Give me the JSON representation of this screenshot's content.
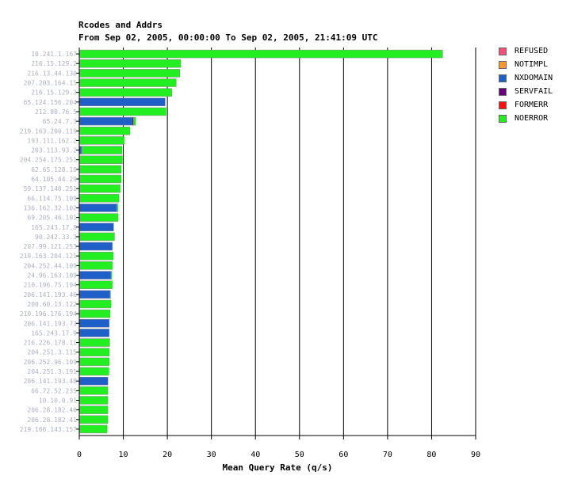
{
  "title": "Rcodes and Addrs",
  "subtitle": "From Sep 02, 2005, 00:00:00 To Sep 02, 2005, 21:41:09 UTC",
  "colors": {
    "REFUSED": "#f0507a",
    "NOTIMPL": "#ff9933",
    "NXDOMAIN": "#1f5fc8",
    "SERVFAIL": "#660077",
    "FORMERR": "#ff1111",
    "NOERROR": "#22ee22"
  },
  "chart_data": {
    "type": "bar",
    "orientation": "horizontal",
    "stacked": true,
    "xlabel": "Mean Query Rate (q/s)",
    "xlim": [
      0,
      90
    ],
    "xticks": [
      0,
      10,
      20,
      30,
      40,
      50,
      60,
      70,
      80,
      90
    ],
    "grid": "vertical",
    "legend_position": "top-right",
    "legend": [
      "REFUSED",
      "NOTIMPL",
      "NXDOMAIN",
      "SERVFAIL",
      "FORMERR",
      "NOERROR"
    ],
    "categories": [
      "10.241.1.167",
      "216.15.129.2",
      "216.13.44.130",
      "207.203.164.15",
      "216.15.129.3",
      "65.124.156.204",
      "212.80.76.5",
      "65.24.7.3",
      "219.163.200.119",
      "193.111.162.2",
      "203.113.93.2",
      "204.254.175.251",
      "62.65.128.10",
      "64.105.44.29",
      "59.137.140.251",
      "66.114.75.109",
      "136.162.32.102",
      "69.205.46.101",
      "165.243.17.8",
      "90.242.33.3",
      "207.99.121.253",
      "219.163.204.121",
      "204.252.44.109",
      "24.96.163.109",
      "210.196.75.194",
      "206.141.193.46",
      "200.60.13.122",
      "210.196.176.194",
      "206.141.193.73",
      "165.243.17.9",
      "216.226.178.11",
      "204.251.3.115",
      "206.252.96.109",
      "204.251.3.191",
      "206.141.193.48",
      "66.72.52.235",
      "10.10.0.91",
      "206.28.182.40",
      "206.28.182.41",
      "219.166.143.157"
    ],
    "series": [
      {
        "name": "NXDOMAIN",
        "values": [
          0,
          0,
          0,
          0,
          0,
          19.5,
          0,
          12.0,
          0,
          0,
          0.5,
          0,
          0,
          0,
          0,
          0,
          8.5,
          0,
          7.8,
          0,
          7.5,
          0,
          0,
          7.2,
          0,
          7.0,
          0,
          0,
          6.8,
          6.8,
          0,
          0,
          0,
          0,
          6.5,
          0,
          0,
          0,
          0,
          0
        ]
      },
      {
        "name": "SERVFAIL",
        "values": [
          0,
          0,
          0,
          0,
          0,
          0,
          0,
          0.3,
          0,
          0,
          0,
          0,
          0,
          0,
          0,
          0,
          0,
          0,
          0,
          0,
          0,
          0,
          0,
          0,
          0,
          0,
          0,
          0,
          0,
          0,
          0,
          0,
          0,
          0,
          0,
          0,
          0,
          0,
          0,
          0
        ]
      },
      {
        "name": "NOERROR",
        "values": [
          82.5,
          23.0,
          22.8,
          22.0,
          21.0,
          0,
          19.7,
          0.5,
          11.5,
          10.2,
          9.2,
          9.8,
          9.5,
          9.5,
          9.3,
          9.0,
          0.3,
          8.8,
          0,
          8.0,
          0,
          7.7,
          7.5,
          0.2,
          7.5,
          0.1,
          7.2,
          7.0,
          0,
          0,
          6.9,
          6.8,
          6.8,
          6.7,
          0,
          6.5,
          6.5,
          6.5,
          6.5,
          6.3
        ]
      }
    ]
  }
}
